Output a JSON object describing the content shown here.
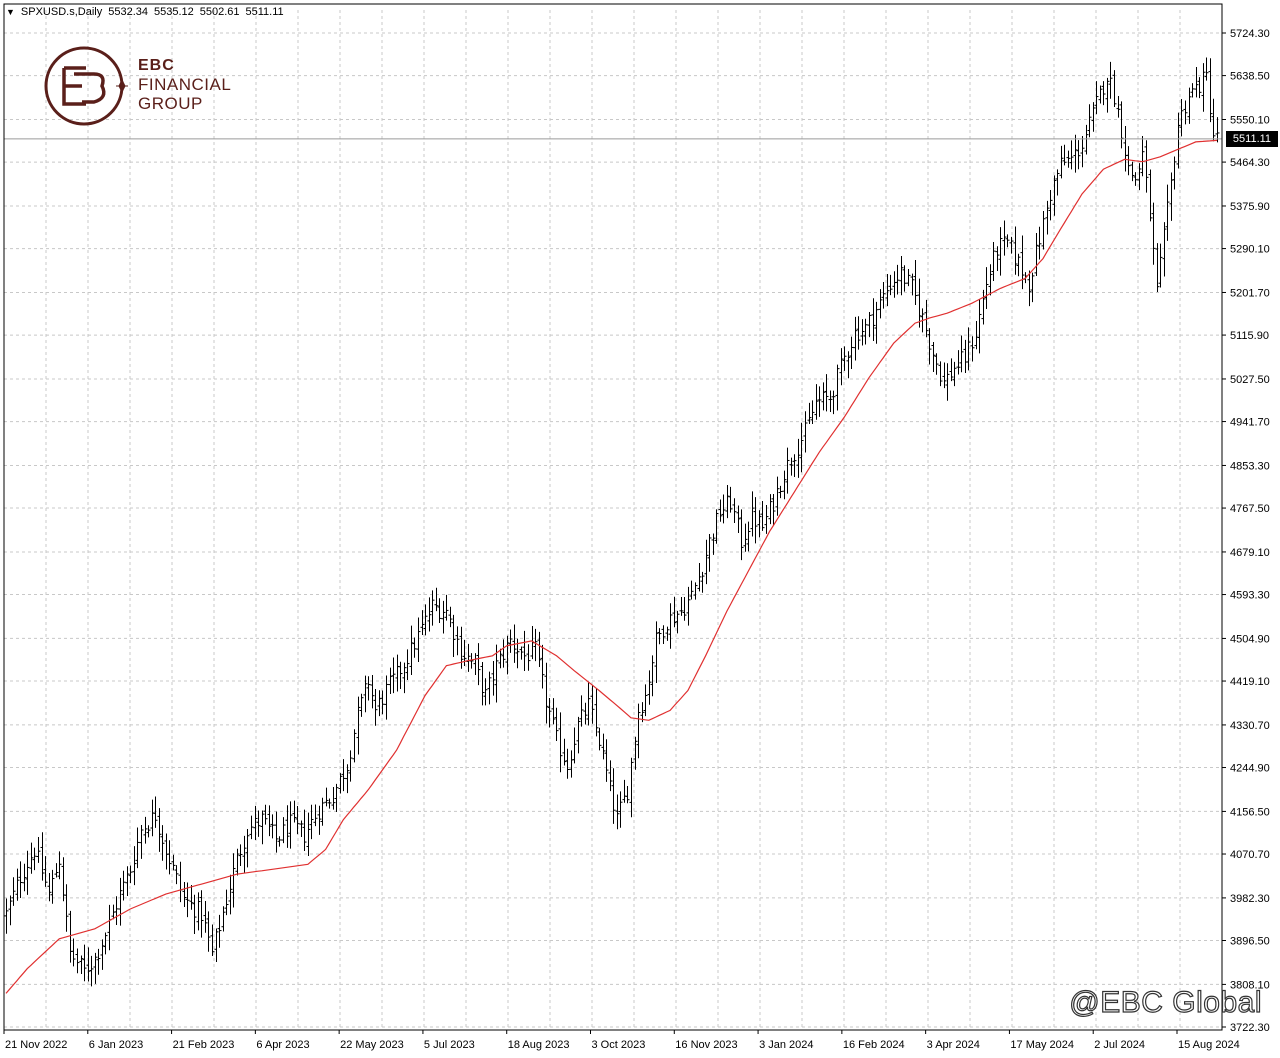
{
  "header": {
    "symbol": "SPXUSD.s,Daily",
    "open": "5532.34",
    "high": "5535.12",
    "low": "5502.61",
    "close": "5511.11"
  },
  "logo": {
    "line1": "EBC",
    "line2": "FINANCIAL",
    "line3": "GROUP"
  },
  "watermark": "@EBC Global",
  "current_price_label": "5511.11",
  "colors": {
    "bars": "#000000",
    "ma_line": "#e03030",
    "grid": "#c8c8c8",
    "brand": "#5a1f1a"
  },
  "chart_data": {
    "type": "ohlc",
    "timeframe": "Daily",
    "y_ticks": [
      "5724.30",
      "5638.50",
      "5550.10",
      "5464.30",
      "5375.90",
      "5290.10",
      "5201.70",
      "5115.90",
      "5027.50",
      "4941.70",
      "4853.30",
      "4767.50",
      "4679.10",
      "4593.30",
      "4504.90",
      "4419.10",
      "4330.70",
      "4244.90",
      "4156.50",
      "4070.70",
      "3982.30",
      "3896.50",
      "3808.10",
      "3722.30"
    ],
    "ylim": [
      3722.3,
      5724.3
    ],
    "x_ticks": [
      "21 Nov 2022",
      "6 Jan 2023",
      "21 Feb 2023",
      "6 Apr 2023",
      "22 May 2023",
      "5 Jul 2023",
      "18 Aug 2023",
      "3 Oct 2023",
      "16 Nov 2023",
      "3 Jan 2024",
      "16 Feb 2024",
      "3 Apr 2024",
      "17 May 2024",
      "2 Jul 2024",
      "15 Aug 2024"
    ],
    "close_anchors": [
      [
        0,
        3950
      ],
      [
        4,
        4025
      ],
      [
        8,
        4080
      ],
      [
        12,
        3990
      ],
      [
        15,
        4060
      ],
      [
        18,
        3870
      ],
      [
        22,
        3835
      ],
      [
        25,
        3860
      ],
      [
        28,
        3910
      ],
      [
        32,
        3990
      ],
      [
        35,
        4040
      ],
      [
        38,
        4120
      ],
      [
        42,
        4150
      ],
      [
        45,
        4080
      ],
      [
        50,
        3980
      ],
      [
        55,
        3950
      ],
      [
        58,
        3870
      ],
      [
        62,
        3980
      ],
      [
        65,
        4060
      ],
      [
        68,
        4120
      ],
      [
        72,
        4140
      ],
      [
        76,
        4100
      ],
      [
        80,
        4130
      ],
      [
        84,
        4110
      ],
      [
        88,
        4160
      ],
      [
        92,
        4190
      ],
      [
        96,
        4250
      ],
      [
        99,
        4350
      ],
      [
        102,
        4420
      ],
      [
        104,
        4360
      ],
      [
        107,
        4400
      ],
      [
        110,
        4430
      ],
      [
        114,
        4480
      ],
      [
        118,
        4540
      ],
      [
        120,
        4570
      ],
      [
        124,
        4560
      ],
      [
        128,
        4480
      ],
      [
        132,
        4450
      ],
      [
        135,
        4390
      ],
      [
        138,
        4450
      ],
      [
        142,
        4500
      ],
      [
        146,
        4470
      ],
      [
        149,
        4480
      ],
      [
        152,
        4380
      ],
      [
        155,
        4300
      ],
      [
        158,
        4250
      ],
      [
        161,
        4330
      ],
      [
        164,
        4370
      ],
      [
        167,
        4300
      ],
      [
        170,
        4200
      ],
      [
        172,
        4140
      ],
      [
        175,
        4200
      ],
      [
        178,
        4360
      ],
      [
        180,
        4390
      ],
      [
        183,
        4500
      ],
      [
        186,
        4540
      ],
      [
        190,
        4560
      ],
      [
        193,
        4590
      ],
      [
        196,
        4650
      ],
      [
        198,
        4700
      ],
      [
        201,
        4760
      ],
      [
        204,
        4780
      ],
      [
        207,
        4700
      ],
      [
        210,
        4750
      ],
      [
        213,
        4730
      ],
      [
        216,
        4780
      ],
      [
        219,
        4840
      ],
      [
        222,
        4880
      ],
      [
        225,
        4920
      ],
      [
        228,
        4980
      ],
      [
        232,
        4990
      ],
      [
        236,
        5070
      ],
      [
        239,
        5120
      ],
      [
        242,
        5130
      ],
      [
        246,
        5180
      ],
      [
        249,
        5220
      ],
      [
        252,
        5240
      ],
      [
        255,
        5210
      ],
      [
        258,
        5150
      ],
      [
        261,
        5080
      ],
      [
        264,
        5020
      ],
      [
        267,
        5050
      ],
      [
        270,
        5070
      ],
      [
        273,
        5120
      ],
      [
        276,
        5220
      ],
      [
        279,
        5290
      ],
      [
        282,
        5300
      ],
      [
        285,
        5260
      ],
      [
        288,
        5220
      ],
      [
        291,
        5310
      ],
      [
        294,
        5400
      ],
      [
        297,
        5460
      ],
      [
        300,
        5470
      ],
      [
        303,
        5500
      ],
      [
        306,
        5560
      ],
      [
        308,
        5600
      ],
      [
        310,
        5640
      ],
      [
        312,
        5600
      ],
      [
        314,
        5530
      ],
      [
        316,
        5450
      ],
      [
        318,
        5430
      ],
      [
        320,
        5480
      ],
      [
        322,
        5360
      ],
      [
        324,
        5200
      ],
      [
        326,
        5310
      ],
      [
        328,
        5420
      ],
      [
        330,
        5540
      ],
      [
        333,
        5600
      ],
      [
        336,
        5620
      ],
      [
        338,
        5635
      ],
      [
        340,
        5520
      ],
      [
        341,
        5511
      ]
    ],
    "ma_anchors": [
      [
        0,
        3790
      ],
      [
        6,
        3840
      ],
      [
        15,
        3900
      ],
      [
        25,
        3920
      ],
      [
        35,
        3960
      ],
      [
        45,
        3990
      ],
      [
        55,
        4010
      ],
      [
        65,
        4030
      ],
      [
        75,
        4040
      ],
      [
        85,
        4050
      ],
      [
        90,
        4080
      ],
      [
        95,
        4140
      ],
      [
        102,
        4200
      ],
      [
        110,
        4280
      ],
      [
        118,
        4390
      ],
      [
        124,
        4450
      ],
      [
        130,
        4460
      ],
      [
        137,
        4470
      ],
      [
        141,
        4490
      ],
      [
        148,
        4500
      ],
      [
        155,
        4470
      ],
      [
        160,
        4440
      ],
      [
        167,
        4400
      ],
      [
        172,
        4370
      ],
      [
        176,
        4345
      ],
      [
        181,
        4340
      ],
      [
        187,
        4360
      ],
      [
        192,
        4400
      ],
      [
        197,
        4470
      ],
      [
        203,
        4560
      ],
      [
        209,
        4640
      ],
      [
        215,
        4720
      ],
      [
        222,
        4800
      ],
      [
        229,
        4880
      ],
      [
        236,
        4950
      ],
      [
        243,
        5030
      ],
      [
        250,
        5100
      ],
      [
        256,
        5140
      ],
      [
        260,
        5150
      ],
      [
        265,
        5160
      ],
      [
        272,
        5180
      ],
      [
        280,
        5210
      ],
      [
        287,
        5230
      ],
      [
        292,
        5270
      ],
      [
        297,
        5330
      ],
      [
        303,
        5400
      ],
      [
        309,
        5450
      ],
      [
        315,
        5470
      ],
      [
        320,
        5465
      ],
      [
        325,
        5475
      ],
      [
        330,
        5490
      ],
      [
        335,
        5505
      ],
      [
        341,
        5508
      ]
    ]
  }
}
